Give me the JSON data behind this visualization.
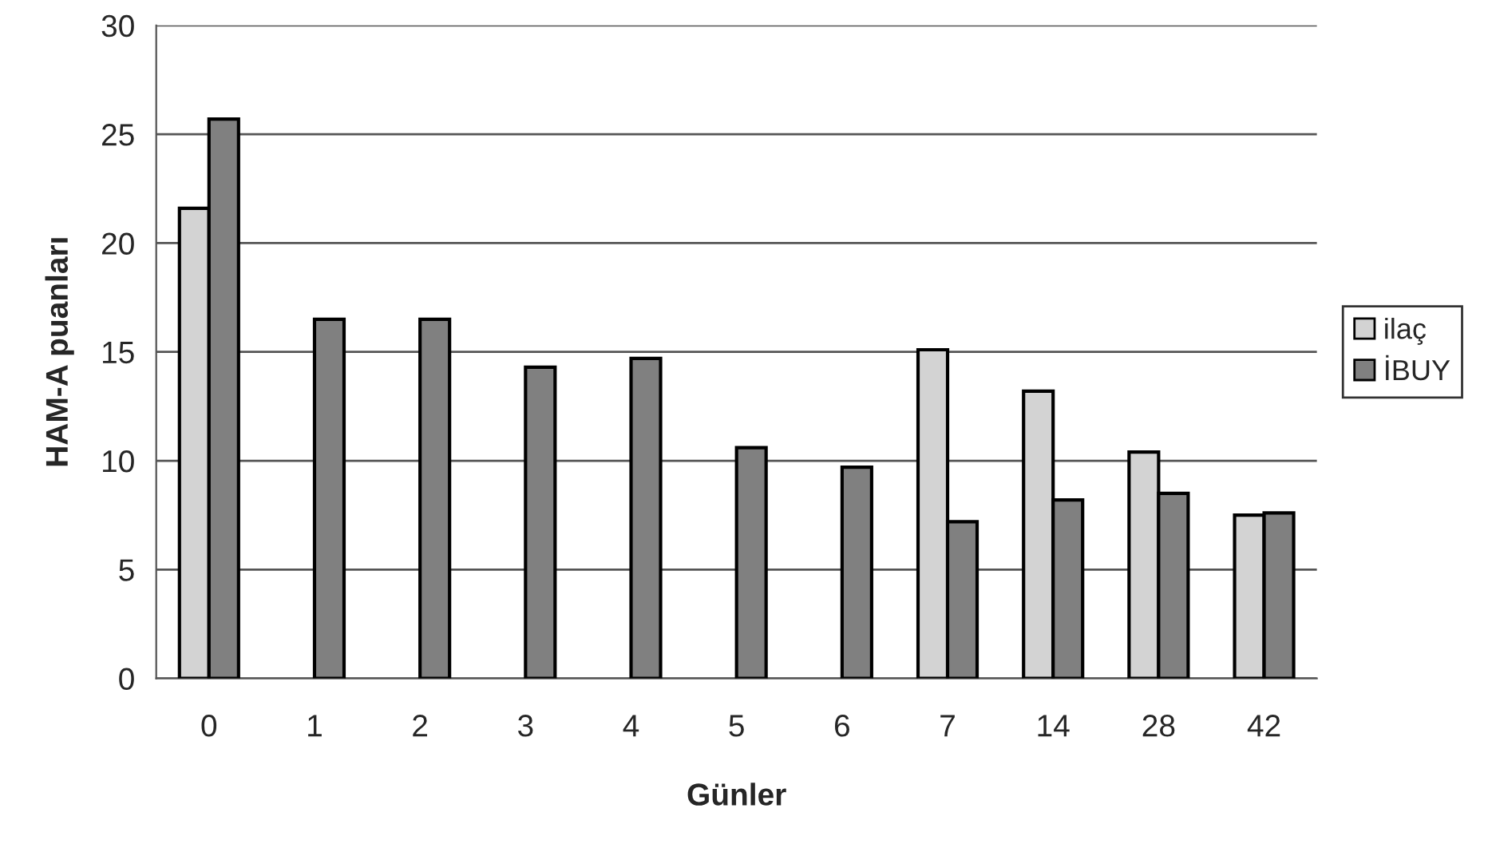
{
  "chart_data": {
    "type": "bar",
    "xlabel": "Günler",
    "ylabel": "HAM-A puanları",
    "categories": [
      "0",
      "1",
      "2",
      "3",
      "4",
      "5",
      "6",
      "7",
      "14",
      "28",
      "42"
    ],
    "series": [
      {
        "name": "ilaç",
        "color": "#d3d3d3",
        "values": [
          21.6,
          null,
          null,
          null,
          null,
          null,
          null,
          15.1,
          13.2,
          10.4,
          7.5
        ]
      },
      {
        "name": "İBUY",
        "color": "#808080",
        "values": [
          25.7,
          16.5,
          16.5,
          14.3,
          14.7,
          10.6,
          9.7,
          7.2,
          8.2,
          8.5,
          7.6
        ]
      }
    ],
    "ylim": [
      0,
      30
    ],
    "yticks": [
      0,
      5,
      10,
      15,
      20,
      25,
      30
    ],
    "grid": "y",
    "legend": "right"
  }
}
